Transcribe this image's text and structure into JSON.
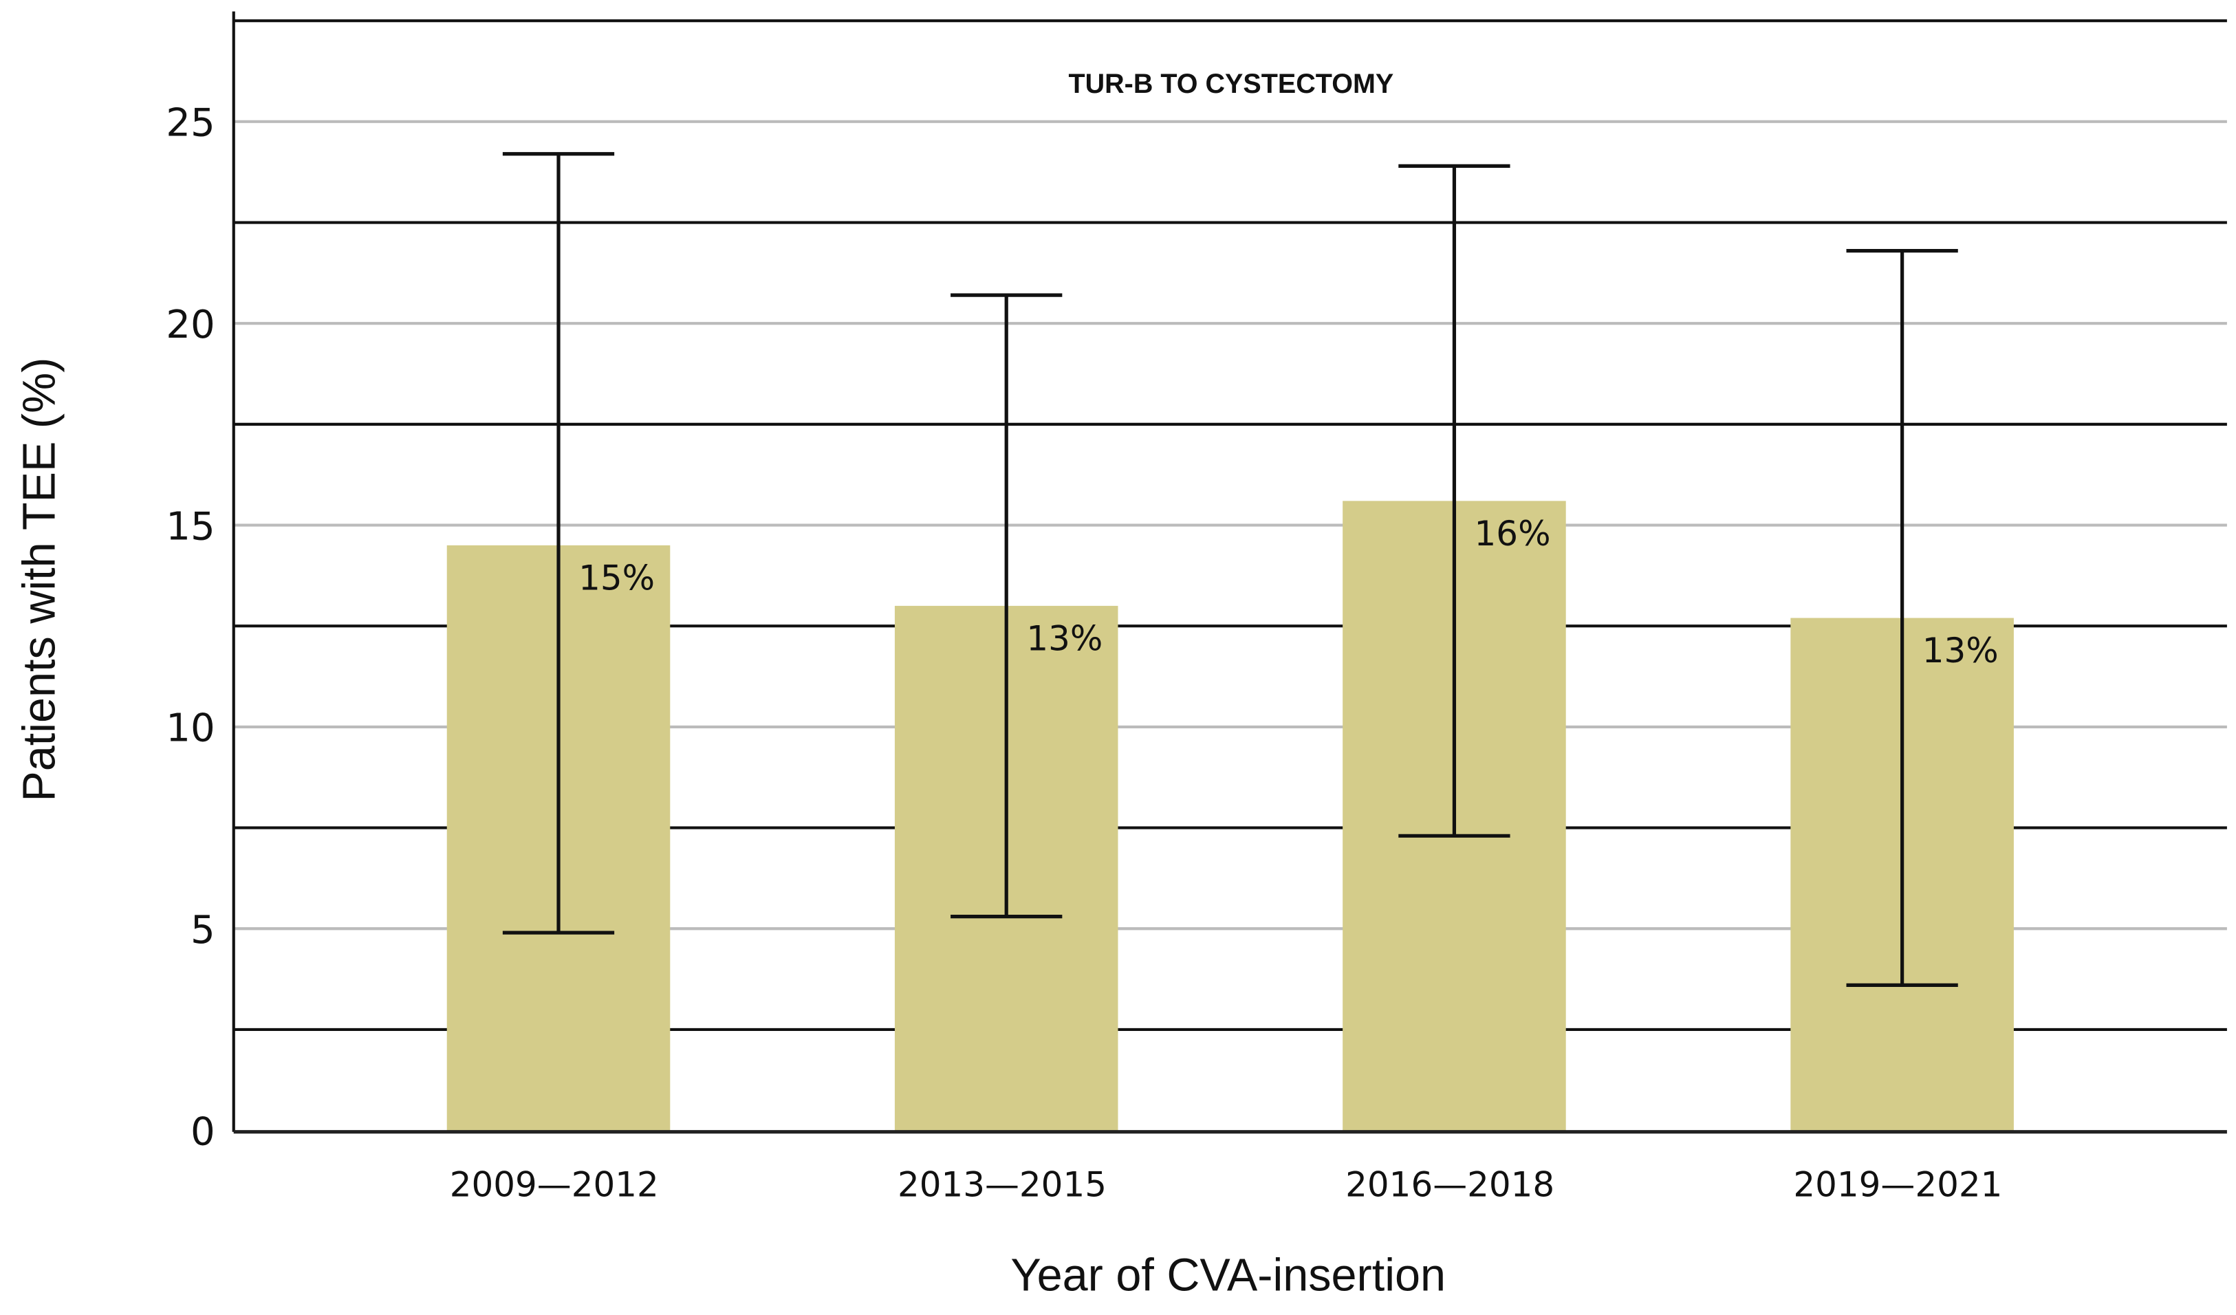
{
  "chart_data": {
    "type": "bar",
    "title": "TUR-B TO CYSTECTOMY",
    "xlabel": "Year of CVA-insertion",
    "ylabel": "Patients with TEE (%)",
    "categories": [
      "2009—2012",
      "2013—2015",
      "2016—2018",
      "2019—2021"
    ],
    "values": [
      14.5,
      13.0,
      15.6,
      12.7
    ],
    "data_labels": [
      "15%",
      "13%",
      "16%",
      "13%"
    ],
    "error_bars": {
      "lower": [
        4.9,
        5.3,
        7.3,
        3.6
      ],
      "upper": [
        24.2,
        20.7,
        23.9,
        21.8
      ]
    },
    "ylim": [
      0,
      27.5
    ],
    "yticks": [
      "0",
      "5",
      "10",
      "15",
      "20",
      "25"
    ],
    "grid": true,
    "colors": {
      "bar": "#d4cc8a",
      "major_grid": "#bbbbbb",
      "minor_grid": "#111111"
    }
  }
}
